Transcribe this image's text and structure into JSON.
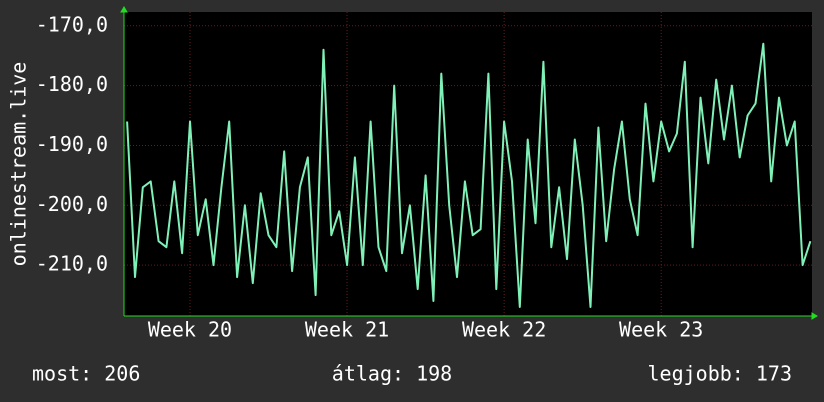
{
  "chart_data": {
    "type": "line",
    "ylabel": "onlinestream.live",
    "color": "#7ff0b8",
    "x": [
      19.6,
      19.65,
      19.7,
      19.75,
      19.8,
      19.85,
      19.9,
      19.95,
      20.0,
      20.05,
      20.1,
      20.15,
      20.2,
      20.25,
      20.3,
      20.35,
      20.4,
      20.45,
      20.5,
      20.55,
      20.6,
      20.65,
      20.7,
      20.75,
      20.8,
      20.85,
      20.9,
      20.95,
      21.0,
      21.05,
      21.1,
      21.15,
      21.2,
      21.25,
      21.3,
      21.35,
      21.4,
      21.45,
      21.5,
      21.55,
      21.6,
      21.65,
      21.7,
      21.75,
      21.8,
      21.85,
      21.9,
      21.95,
      22.0,
      22.05,
      22.1,
      22.15,
      22.2,
      22.25,
      22.3,
      22.35,
      22.4,
      22.45,
      22.5,
      22.55,
      22.6,
      22.65,
      22.7,
      22.75,
      22.8,
      22.85,
      22.9,
      22.95,
      23.0,
      23.05,
      23.1,
      23.15,
      23.2,
      23.25,
      23.3,
      23.35,
      23.4,
      23.45,
      23.5,
      23.55,
      23.6,
      23.65,
      23.7,
      23.75,
      23.8,
      23.85,
      23.9,
      23.95
    ],
    "values": [
      -186,
      -212,
      -197,
      -196,
      -206,
      -207,
      -196,
      -208,
      -186,
      -205,
      -199,
      -210,
      -197,
      -186,
      -212,
      -200,
      -213,
      -198,
      -205,
      -207,
      -191,
      -211,
      -197,
      -192,
      -215,
      -174,
      -205,
      -201,
      -210,
      -192,
      -210,
      -186,
      -207,
      -211,
      -180,
      -208,
      -200,
      -214,
      -195,
      -216,
      -178,
      -200,
      -212,
      -196,
      -205,
      -204,
      -178,
      -214,
      -186,
      -196,
      -217,
      -189,
      -203,
      -176,
      -207,
      -197,
      -209,
      -189,
      -200,
      -217,
      -187,
      -206,
      -194,
      -186,
      -199,
      -205,
      -183,
      -196,
      -186,
      -191,
      -188,
      -176,
      -207,
      -182,
      -193,
      -179,
      -189,
      -180,
      -192,
      -185,
      -183,
      -173,
      -196,
      -182,
      -190,
      -186,
      -210,
      -206
    ],
    "xlim": [
      19.58,
      23.96
    ],
    "ylim": [
      -218.5,
      -167.7
    ],
    "xticks": [
      {
        "value": 20,
        "label": "Week 20"
      },
      {
        "value": 21,
        "label": "Week 21"
      },
      {
        "value": 22,
        "label": "Week 22"
      },
      {
        "value": 23,
        "label": "Week 23"
      }
    ],
    "yticks": [
      {
        "value": -170,
        "label": "-170,0"
      },
      {
        "value": -180,
        "label": "-180,0"
      },
      {
        "value": -190,
        "label": "-190,0"
      },
      {
        "value": -200,
        "label": "-200,0"
      },
      {
        "value": -210,
        "label": "-210,0"
      }
    ],
    "grid": true,
    "footer": [
      "most: 206",
      "átlag: 198",
      "legjobb: 173"
    ]
  }
}
